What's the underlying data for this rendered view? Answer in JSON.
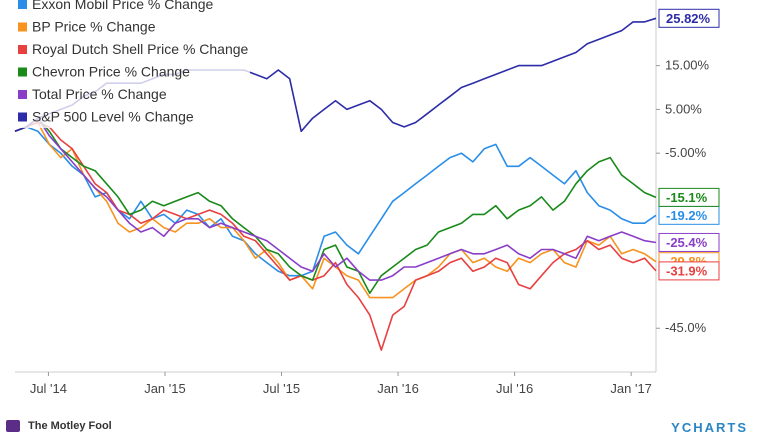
{
  "chart_data": {
    "type": "line",
    "title": "",
    "xlabel": "",
    "ylabel": "",
    "ylim": [
      -55,
      30
    ],
    "x_ticks": [
      "Jul '14",
      "Jan '15",
      "Jul '15",
      "Jan '16",
      "Jul '16",
      "Jan '17"
    ],
    "y_ticks": [
      "15.00%",
      "5.00%",
      "-5.00%",
      "-45.0%"
    ],
    "grid": false,
    "legend_position": "top-left",
    "series": [
      {
        "name": "Exxon Mobil Price % Change",
        "color": "#2a8ee8",
        "end_label": "-19.2%",
        "values": [
          0,
          1,
          0,
          -3,
          -5,
          -8,
          -10,
          -15,
          -14,
          -18,
          -20,
          -16,
          -20,
          -19,
          -21,
          -18,
          -19,
          -22,
          -20,
          -24,
          -25,
          -28,
          -30,
          -32,
          -33,
          -33,
          -32,
          -24,
          -23,
          -26,
          -28,
          -24,
          -20,
          -16,
          -14,
          -12,
          -10,
          -8,
          -6,
          -5,
          -7,
          -4,
          -3,
          -8,
          -8,
          -6,
          -8,
          -10,
          -12,
          -9,
          -14,
          -17,
          -18,
          -20,
          -21,
          -21,
          -19.2
        ]
      },
      {
        "name": "BP Price % Change",
        "color": "#f7931e",
        "end_label": "-29.8%",
        "values": [
          0,
          1,
          2,
          -3,
          -6,
          -4,
          -10,
          -13,
          -16,
          -21,
          -23,
          -22,
          -20,
          -22,
          -23,
          -21,
          -21,
          -20,
          -22,
          -22,
          -25,
          -29,
          -27,
          -30,
          -34,
          -33,
          -36,
          -29,
          -31,
          -33,
          -34,
          -38,
          -38,
          -38,
          -36,
          -34,
          -33,
          -31,
          -28,
          -27,
          -30,
          -29,
          -31,
          -32,
          -29,
          -30,
          -28,
          -27,
          -30,
          -31,
          -25,
          -26,
          -24,
          -28,
          -27,
          -28,
          -29.8
        ]
      },
      {
        "name": "Royal Dutch Shell Price % Change",
        "color": "#e84040",
        "end_label": "-31.9%",
        "values": [
          0,
          1,
          2,
          1,
          -2,
          -4,
          -8,
          -12,
          -14,
          -18,
          -19,
          -21,
          -20,
          -18,
          -19,
          -20,
          -19,
          -18,
          -19,
          -21,
          -24,
          -25,
          -28,
          -31,
          -34,
          -33,
          -34,
          -33,
          -30,
          -35,
          -38,
          -42,
          -50,
          -42,
          -40,
          -34,
          -33,
          -32,
          -30,
          -29,
          -32,
          -31,
          -29,
          -30,
          -35,
          -36,
          -33,
          -30,
          -28,
          -27,
          -25,
          -27,
          -26,
          -29,
          -30,
          -29,
          -31.9
        ]
      },
      {
        "name": "Chevron Price % Change",
        "color": "#1a8a1a",
        "end_label": "-15.1%",
        "values": [
          0,
          1,
          3,
          0,
          -4,
          -6,
          -8,
          -9,
          -12,
          -15,
          -19,
          -18,
          -16,
          -17,
          -16,
          -15,
          -14,
          -16,
          -17,
          -20,
          -22,
          -24,
          -27,
          -28,
          -31,
          -33,
          -34,
          -27,
          -26,
          -31,
          -32,
          -37,
          -33,
          -31,
          -29,
          -27,
          -26,
          -23,
          -22,
          -21,
          -19,
          -19,
          -17,
          -20,
          -18,
          -17,
          -15,
          -18,
          -16,
          -12,
          -9,
          -7,
          -6,
          -10,
          -12,
          -14,
          -15.1
        ]
      },
      {
        "name": "Total Price % Change",
        "color": "#8a3ec8",
        "end_label": "-25.4%",
        "values": [
          0,
          1,
          3,
          -1,
          -4,
          -7,
          -10,
          -13,
          -15,
          -18,
          -21,
          -23,
          -22,
          -24,
          -21,
          -20,
          -20,
          -22,
          -21,
          -22,
          -23,
          -24,
          -25,
          -27,
          -29,
          -31,
          -32,
          -28,
          -31,
          -29,
          -32,
          -34,
          -34,
          -33,
          -31,
          -31,
          -30,
          -29,
          -28,
          -27,
          -28,
          -28,
          -27,
          -26,
          -28,
          -29,
          -27,
          -27,
          -28,
          -29,
          -24,
          -25,
          -24,
          -23,
          -24,
          -25,
          -25.4
        ]
      },
      {
        "name": "S&P 500 Level % Change",
        "color": "#2c2ca8",
        "end_label": "25.82%",
        "values": [
          0,
          1,
          3,
          4,
          5,
          6,
          8,
          9,
          11,
          11,
          11,
          11,
          12,
          13,
          13,
          14,
          14,
          14,
          14,
          14,
          14,
          13,
          12,
          14,
          12,
          0,
          3,
          5,
          7,
          5,
          6,
          7,
          5,
          2,
          1,
          2,
          4,
          6,
          8,
          10,
          11,
          12,
          13,
          14,
          15,
          15,
          15,
          16,
          17,
          18,
          20,
          21,
          22,
          23,
          25,
          25,
          25.82
        ]
      }
    ]
  },
  "footer": {
    "left_text": "The Motley Fool",
    "right_text": "YCHARTS"
  }
}
